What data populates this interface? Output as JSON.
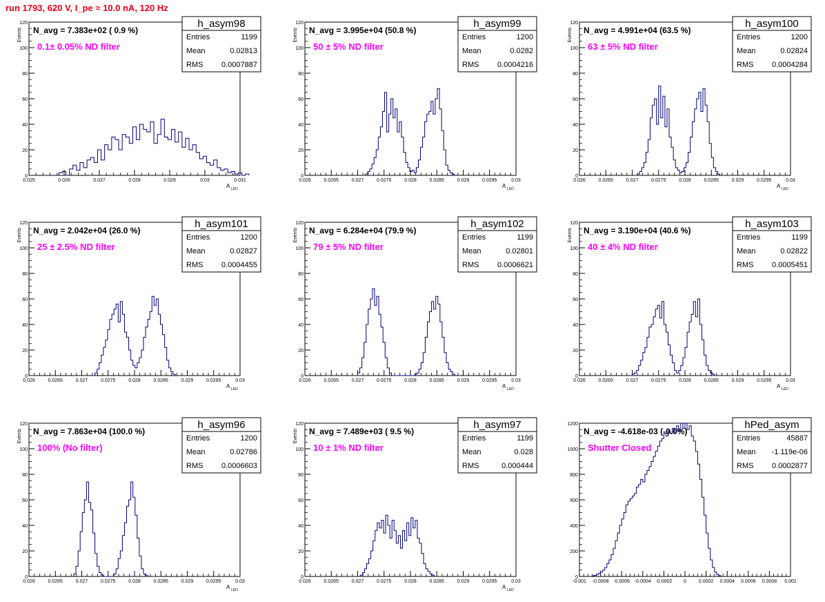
{
  "page": {
    "title": "run 1793,   620 V, I_pe ≈ 10.0 nA, 120 Hz"
  },
  "style": {
    "hist_color": "#00007a",
    "nevt_color": "#000000",
    "filter_color": "#ff00ff",
    "title_color": "#e8001a"
  },
  "chart_data": [
    {
      "type": "bar",
      "name": "h_asym98",
      "ylabel": "Events",
      "xlabel": "A",
      "xlabel_sub": "LED",
      "nevt": "N_avg = 7.383e+02 ( 0.9 %)",
      "filter": "0.1± 0.05% ND filter",
      "stats": [
        [
          "Entries",
          "1199"
        ],
        [
          "Mean",
          "0.02813"
        ],
        [
          "RMS",
          "0.0007887"
        ]
      ],
      "xlim": [
        0.025,
        0.031
      ],
      "ylim": [
        0,
        120
      ],
      "bin_start": 0.02585,
      "bin_width": 0.0001,
      "xticks": [
        0.025,
        0.026,
        0.027,
        0.028,
        0.029,
        0.03,
        0.031
      ],
      "xtick_labels": [
        "0.025",
        "0.026",
        "0.027",
        "0.028",
        "0.029",
        "0.03",
        "0.031"
      ],
      "yticks": [
        0,
        20,
        40,
        60,
        80,
        100,
        120
      ],
      "values": [
        2,
        3,
        0,
        5,
        8,
        4,
        10,
        6,
        12,
        14,
        10,
        20,
        12,
        24,
        20,
        30,
        28,
        20,
        32,
        30,
        25,
        38,
        28,
        40,
        36,
        34,
        42,
        25,
        32,
        44,
        30,
        28,
        36,
        26,
        34,
        22,
        29,
        20,
        24,
        18,
        13,
        15,
        10,
        8,
        12,
        6,
        4,
        5,
        2,
        3,
        1,
        2,
        0,
        1
      ]
    },
    {
      "type": "bar",
      "name": "h_asym99",
      "ylabel": "Events",
      "xlabel": "A",
      "xlabel_sub": "LED",
      "nevt": "N_avg = 3.995e+04 (50.8 %)",
      "filter": "50 ± 5% ND filter",
      "stats": [
        [
          "Entries",
          "1200"
        ],
        [
          "Mean",
          "0.0282"
        ],
        [
          "RMS",
          "0.0004216"
        ]
      ],
      "xlim": [
        0.026,
        0.03
      ],
      "ylim": [
        0,
        120
      ],
      "bin_start": 0.02715,
      "bin_width": 4e-05,
      "xticks": [
        0.026,
        0.0265,
        0.027,
        0.0275,
        0.028,
        0.0285,
        0.029,
        0.0295,
        0.03
      ],
      "xtick_labels": [
        "0.026",
        "0.0265",
        "0.027",
        "0.0275",
        "0.028",
        "0.0285",
        "0.029",
        "0.0295",
        "0.03"
      ],
      "yticks": [
        0,
        20,
        40,
        60,
        80,
        100,
        120
      ],
      "values": [
        1,
        3,
        5,
        9,
        14,
        20,
        30,
        38,
        50,
        65,
        34,
        48,
        60,
        45,
        52,
        34,
        42,
        30,
        18,
        10,
        6,
        3,
        4,
        2,
        6,
        12,
        22,
        30,
        42,
        48,
        50,
        58,
        48,
        60,
        68,
        52,
        35,
        20,
        8,
        4,
        2,
        1
      ]
    },
    {
      "type": "bar",
      "name": "h_asym100",
      "ylabel": "Events",
      "xlabel": "A",
      "xlabel_sub": "LED",
      "nevt": "N_avg = 4.991e+04 (63.5 %)",
      "filter": "63 ± 5% ND filter",
      "stats": [
        [
          "Entries",
          "1200"
        ],
        [
          "Mean",
          "0.02824"
        ],
        [
          "RMS",
          "0.0004284"
        ]
      ],
      "xlim": [
        0.026,
        0.03
      ],
      "ylim": [
        0,
        120
      ],
      "bin_start": 0.0271,
      "bin_width": 4e-05,
      "xticks": [
        0.026,
        0.0265,
        0.027,
        0.0275,
        0.028,
        0.0285,
        0.029,
        0.0295,
        0.03
      ],
      "xtick_labels": [
        "0.026",
        "0.0265",
        "0.027",
        "0.0275",
        "0.028",
        "0.0285",
        "0.029",
        "0.0295",
        "0.03"
      ],
      "yticks": [
        0,
        20,
        40,
        60,
        80,
        100,
        120
      ],
      "values": [
        1,
        3,
        6,
        10,
        18,
        28,
        45,
        55,
        60,
        40,
        70,
        45,
        62,
        38,
        52,
        30,
        22,
        12,
        6,
        4,
        2,
        3,
        6,
        10,
        18,
        30,
        42,
        52,
        60,
        65,
        50,
        68,
        55,
        42,
        25,
        14,
        6,
        3,
        1
      ]
    },
    {
      "type": "bar",
      "name": "h_asym101",
      "ylabel": "Events",
      "xlabel": "A",
      "xlabel_sub": "LED",
      "nevt": "N_avg = 2.042e+04 (26.0 %)",
      "filter": "25 ± 2.5% ND filter",
      "stats": [
        [
          "Entries",
          "1200"
        ],
        [
          "Mean",
          "0.02827"
        ],
        [
          "RMS",
          "0.0004455"
        ]
      ],
      "xlim": [
        0.026,
        0.03
      ],
      "ylim": [
        0,
        120
      ],
      "bin_start": 0.02725,
      "bin_width": 4e-05,
      "xticks": [
        0.026,
        0.0265,
        0.027,
        0.0275,
        0.028,
        0.0285,
        0.029,
        0.0295,
        0.03
      ],
      "xtick_labels": [
        "0.026",
        "0.0265",
        "0.027",
        "0.0275",
        "0.028",
        "0.0285",
        "0.029",
        "0.0295",
        "0.03"
      ],
      "yticks": [
        0,
        20,
        40,
        60,
        80,
        100,
        120
      ],
      "values": [
        2,
        5,
        10,
        16,
        22,
        28,
        36,
        44,
        48,
        52,
        56,
        42,
        58,
        48,
        34,
        30,
        20,
        12,
        8,
        6,
        10,
        14,
        20,
        30,
        38,
        44,
        50,
        62,
        55,
        60,
        48,
        40,
        32,
        22,
        12,
        6,
        3,
        1
      ]
    },
    {
      "type": "bar",
      "name": "h_asym102",
      "ylabel": "Events",
      "xlabel": "A",
      "xlabel_sub": "LED",
      "nevt": "N_avg = 6.284e+04 (79.9 %)",
      "filter": "79 ± 5% ND filter",
      "stats": [
        [
          "Entries",
          "1199"
        ],
        [
          "Mean",
          "0.02801"
        ],
        [
          "RMS",
          "0.0006621"
        ]
      ],
      "xlim": [
        0.026,
        0.03
      ],
      "ylim": [
        0,
        120
      ],
      "bin_start": 0.027,
      "bin_width": 4e-05,
      "xticks": [
        0.026,
        0.0265,
        0.027,
        0.0275,
        0.028,
        0.0285,
        0.029,
        0.0295,
        0.03
      ],
      "xtick_labels": [
        "0.026",
        "0.0265",
        "0.027",
        "0.0275",
        "0.028",
        "0.0285",
        "0.029",
        "0.0295",
        "0.03"
      ],
      "yticks": [
        0,
        20,
        40,
        60,
        80,
        100,
        120
      ],
      "values": [
        2,
        6,
        14,
        26,
        40,
        52,
        60,
        68,
        55,
        62,
        48,
        38,
        26,
        14,
        6,
        2,
        0,
        0,
        0,
        0,
        0,
        0,
        0,
        0,
        0,
        0,
        0,
        1,
        2,
        5,
        10,
        18,
        30,
        42,
        50,
        58,
        52,
        62,
        56,
        42,
        30,
        18,
        10,
        5,
        3,
        1
      ]
    },
    {
      "type": "bar",
      "name": "h_asym103",
      "ylabel": "Events",
      "xlabel": "A",
      "xlabel_sub": "LED",
      "nevt": "N_avg = 3.190e+04 (40.6 %)",
      "filter": "40 ± 4% ND filter",
      "stats": [
        [
          "Entries",
          "1199"
        ],
        [
          "Mean",
          "0.02822"
        ],
        [
          "RMS",
          "0.0005451"
        ]
      ],
      "xlim": [
        0.026,
        0.03
      ],
      "ylim": [
        0,
        120
      ],
      "bin_start": 0.027,
      "bin_width": 4e-05,
      "xticks": [
        0.026,
        0.0265,
        0.027,
        0.0275,
        0.028,
        0.0285,
        0.029,
        0.0295,
        0.03
      ],
      "xtick_labels": [
        "0.026",
        "0.0265",
        "0.027",
        "0.0275",
        "0.028",
        "0.0285",
        "0.029",
        "0.0295",
        "0.03"
      ],
      "yticks": [
        0,
        20,
        40,
        60,
        80,
        100,
        120
      ],
      "values": [
        1,
        2,
        4,
        8,
        12,
        18,
        22,
        30,
        38,
        40,
        46,
        52,
        55,
        45,
        58,
        40,
        34,
        24,
        16,
        10,
        4,
        2,
        4,
        8,
        14,
        22,
        34,
        42,
        48,
        58,
        46,
        60,
        40,
        28,
        16,
        8,
        4,
        2,
        1
      ]
    },
    {
      "type": "bar",
      "name": "h_asym96",
      "ylabel": "Events",
      "xlabel": "A",
      "xlabel_sub": "LED",
      "nevt": "N_avg = 7.863e+04 (100.0 %)",
      "filter": "100% (No filter)",
      "stats": [
        [
          "Entries",
          "1200"
        ],
        [
          "Mean",
          "0.02786"
        ],
        [
          "RMS",
          "0.0006603"
        ]
      ],
      "xlim": [
        0.026,
        0.03
      ],
      "ylim": [
        0,
        120
      ],
      "bin_start": 0.02685,
      "bin_width": 4e-05,
      "xticks": [
        0.026,
        0.0265,
        0.027,
        0.0275,
        0.028,
        0.0285,
        0.029,
        0.0295,
        0.03
      ],
      "xtick_labels": [
        "0.026",
        "0.0265",
        "0.027",
        "0.0275",
        "0.028",
        "0.0285",
        "0.029",
        "0.0295",
        "0.03"
      ],
      "yticks": [
        0,
        20,
        40,
        60,
        80,
        100,
        120
      ],
      "values": [
        2,
        8,
        20,
        35,
        50,
        60,
        74,
        58,
        52,
        34,
        18,
        8,
        3,
        1,
        0,
        0,
        0,
        0,
        0,
        2,
        6,
        14,
        20,
        32,
        42,
        55,
        60,
        74,
        62,
        48,
        30,
        16,
        6,
        2,
        1
      ]
    },
    {
      "type": "bar",
      "name": "h_asym97",
      "ylabel": "Events",
      "xlabel": "A",
      "xlabel_sub": "LED",
      "nevt": "N_avg = 7.489e+03 ( 9.5 %)",
      "filter": "10 ± 1% ND filter",
      "stats": [
        [
          "Entries",
          "1199"
        ],
        [
          "Mean",
          "0.028"
        ],
        [
          "RMS",
          "0.000444"
        ]
      ],
      "xlim": [
        0.026,
        0.03
      ],
      "ylim": [
        0,
        120
      ],
      "bin_start": 0.02705,
      "bin_width": 4e-05,
      "xticks": [
        0.026,
        0.0265,
        0.027,
        0.0275,
        0.028,
        0.0285,
        0.029,
        0.0295,
        0.03
      ],
      "xtick_labels": [
        "0.026",
        "0.0265",
        "0.027",
        "0.0275",
        "0.028",
        "0.0285",
        "0.029",
        "0.0295",
        "0.03"
      ],
      "yticks": [
        0,
        20,
        40,
        60,
        80,
        100,
        120
      ],
      "values": [
        1,
        3,
        6,
        10,
        14,
        20,
        28,
        36,
        42,
        38,
        44,
        34,
        48,
        40,
        30,
        44,
        36,
        26,
        32,
        22,
        36,
        28,
        42,
        32,
        46,
        38,
        44,
        30,
        26,
        18,
        10,
        6,
        4,
        2,
        1
      ]
    },
    {
      "type": "bar",
      "name": "hPed_asym",
      "ylabel": "",
      "xlabel": "",
      "xlabel_sub": "",
      "nevt": "N_avg = -4.618e-03 (-0.0%)",
      "filter": "Shutter Closed",
      "stats": [
        [
          "Entries",
          "45887"
        ],
        [
          "Mean",
          "-1.119e-06"
        ],
        [
          "RMS",
          "0.0002877"
        ]
      ],
      "xlim": [
        -0.001,
        0.001
      ],
      "ylim": [
        0,
        1200
      ],
      "bin_start": -0.00088,
      "bin_width": 2e-05,
      "xticks": [
        -0.001,
        -0.0008,
        -0.0006,
        -0.0004,
        -0.0002,
        0,
        0.0002,
        0.0004,
        0.0006,
        0.0008,
        0.001
      ],
      "xtick_labels": [
        "-0.001",
        "-0.0008",
        "-0.0006",
        "-0.0004",
        "-0.0002",
        "0",
        "0.0002",
        "0.0004",
        "0.0006",
        "0.0008",
        "0.001"
      ],
      "yticks": [
        0,
        200,
        400,
        600,
        800,
        1000,
        1200
      ],
      "values": [
        5,
        8,
        15,
        25,
        35,
        50,
        70,
        100,
        130,
        170,
        220,
        280,
        340,
        400,
        450,
        500,
        560,
        590,
        610,
        630,
        650,
        700,
        720,
        760,
        740,
        800,
        830,
        860,
        900,
        940,
        980,
        1020,
        1060,
        1080,
        1120,
        1100,
        1140,
        1120,
        1160,
        1130,
        1180,
        1140,
        1200,
        1160,
        1220,
        1150,
        1180,
        1100,
        1060,
        980,
        880,
        760,
        620,
        480,
        340,
        220,
        130,
        70,
        35,
        15,
        6
      ]
    }
  ]
}
